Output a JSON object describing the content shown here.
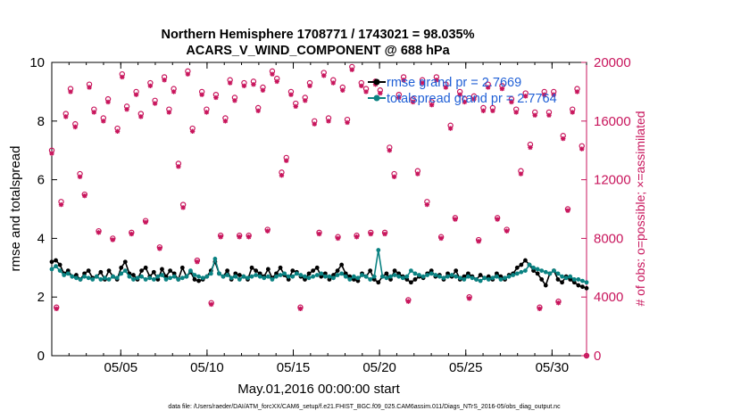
{
  "chart_data": {
    "type": "line",
    "title": "Northern Hemisphere 1708771 / 1743021 = 98.035%",
    "subtitle": "ACARS_V_WIND_COMPONENT @ 688 hPa",
    "xlabel": "May.01,2016 00:00:00 start",
    "ylabel": "rmse and totalspread",
    "ylabel_right": "# of obs: o=possible; ×=assimilated",
    "x_ticks": [
      {
        "label": "05/05",
        "day": 5
      },
      {
        "label": "05/10",
        "day": 10
      },
      {
        "label": "05/15",
        "day": 15
      },
      {
        "label": "05/20",
        "day": 20
      },
      {
        "label": "05/25",
        "day": 25
      },
      {
        "label": "05/30",
        "day": 30
      }
    ],
    "xlim": [
      1,
      32
    ],
    "ylim": [
      0,
      10
    ],
    "ylim_right": [
      0,
      20000
    ],
    "y_ticks": [
      "0",
      "2",
      "4",
      "6",
      "8",
      "10"
    ],
    "y_ticks_right": [
      "0",
      "4000",
      "8000",
      "12000",
      "16000",
      "20000"
    ],
    "legend": [
      {
        "label": "rmse grand pr = 2.7669",
        "color": "#000000"
      },
      {
        "label": "totalspread grand pr = 2.7764",
        "color": "#008080"
      }
    ],
    "colors": {
      "rmse": "#000000",
      "spread": "#0a8282",
      "obs": "#c8155c",
      "legend_text": "#1f5fd6"
    },
    "series": [
      {
        "name": "rmse",
        "values": [
          3.2,
          3.25,
          3.1,
          2.8,
          2.9,
          2.7,
          2.75,
          2.6,
          2.8,
          2.9,
          2.65,
          2.7,
          2.85,
          2.6,
          2.9,
          2.7,
          2.6,
          3.0,
          3.2,
          2.8,
          2.75,
          2.6,
          2.9,
          3.0,
          2.7,
          2.85,
          2.6,
          2.95,
          2.7,
          2.9,
          2.8,
          2.6,
          3.0,
          2.7,
          2.85,
          2.6,
          2.55,
          2.6,
          2.7,
          2.9,
          3.2,
          2.8,
          2.7,
          2.9,
          2.6,
          2.8,
          2.75,
          2.7,
          2.6,
          3.0,
          2.9,
          2.8,
          2.7,
          2.95,
          2.65,
          2.8,
          3.0,
          2.75,
          2.6,
          2.9,
          2.85,
          2.7,
          2.6,
          2.8,
          2.9,
          3.0,
          2.7,
          2.8,
          2.6,
          2.75,
          2.9,
          3.1,
          2.8,
          2.7,
          2.6,
          2.55,
          2.8,
          2.7,
          2.9,
          2.6,
          2.5,
          2.7,
          2.8,
          2.6,
          2.9,
          2.8,
          2.7,
          2.6,
          2.5,
          2.6,
          2.7,
          2.65,
          2.8,
          2.9,
          2.7,
          2.75,
          2.6,
          2.8,
          2.7,
          2.9,
          2.6,
          2.7,
          2.8,
          2.7,
          2.6,
          2.75,
          2.65,
          2.7,
          2.6,
          2.8,
          2.7,
          2.6,
          2.75,
          2.8,
          3.0,
          3.1,
          3.25,
          3.1,
          2.9,
          2.8,
          2.6,
          2.4,
          2.8,
          2.9,
          2.6,
          2.5,
          2.7,
          2.6,
          2.5,
          2.4,
          2.35,
          2.3
        ]
      },
      {
        "name": "totalspread",
        "values": [
          2.95,
          3.05,
          2.9,
          2.75,
          2.8,
          2.7,
          2.65,
          2.6,
          2.7,
          2.65,
          2.6,
          2.7,
          2.6,
          2.65,
          2.6,
          2.7,
          2.65,
          2.8,
          2.9,
          2.7,
          2.6,
          2.65,
          2.7,
          2.6,
          2.65,
          2.6,
          2.7,
          2.75,
          2.6,
          2.65,
          2.7,
          2.6,
          2.65,
          2.7,
          2.9,
          2.75,
          2.7,
          2.65,
          2.7,
          2.8,
          3.3,
          2.8,
          2.7,
          2.75,
          2.65,
          2.7,
          2.6,
          2.7,
          2.65,
          2.7,
          2.75,
          2.7,
          2.65,
          2.7,
          2.6,
          2.7,
          2.75,
          2.8,
          2.7,
          2.7,
          2.8,
          2.75,
          2.7,
          2.65,
          2.7,
          2.75,
          2.8,
          2.7,
          2.7,
          2.65,
          2.75,
          2.8,
          2.7,
          2.6,
          2.7,
          2.65,
          2.75,
          2.7,
          2.6,
          2.7,
          3.6,
          2.7,
          2.65,
          2.7,
          2.75,
          2.7,
          2.65,
          2.7,
          2.9,
          2.8,
          2.75,
          2.7,
          2.75,
          2.8,
          2.75,
          2.7,
          2.65,
          2.7,
          2.75,
          2.7,
          2.65,
          2.6,
          2.7,
          2.65,
          2.6,
          2.55,
          2.65,
          2.6,
          2.65,
          2.7,
          2.6,
          2.65,
          2.7,
          2.75,
          2.8,
          2.85,
          2.9,
          3.1,
          3.0,
          2.95,
          2.9,
          2.85,
          2.8,
          2.9,
          2.8,
          2.7,
          2.65,
          2.7,
          2.6,
          2.6,
          2.55,
          2.5
        ]
      },
      {
        "name": "obs_possible",
        "values": [
          14000,
          3300,
          10500,
          16500,
          18200,
          15800,
          12400,
          11000,
          18500,
          16800,
          8500,
          16200,
          17500,
          8000,
          15500,
          19200,
          17000,
          8400,
          18000,
          16500,
          9200,
          18600,
          17400,
          7400,
          19000,
          16800,
          18200,
          13100,
          10300,
          19400,
          15500,
          6500,
          18000,
          16800,
          3600,
          17800,
          8200,
          16200,
          18800,
          17600,
          8200,
          18600,
          8200,
          18700,
          16900,
          18300,
          8600,
          19400,
          18900,
          12500,
          13500,
          18000,
          17200,
          3300,
          17600,
          18600,
          16000,
          8400,
          19300,
          16200,
          18800,
          8100,
          18300,
          16100,
          19700,
          8200,
          18600,
          18200,
          8400,
          18700,
          18100,
          8400,
          14200,
          12400,
          17800,
          19000,
          3800,
          17500,
          12600,
          18800,
          10500,
          17300,
          19000,
          8100,
          18500,
          15700,
          9400,
          18000,
          17500,
          4000,
          17700,
          7900,
          16900,
          18500,
          16900,
          9400,
          18400,
          8600,
          17500,
          16800,
          12600,
          17900,
          14400,
          16600,
          3300,
          18000,
          16600,
          18000,
          3700,
          15000,
          10000,
          16800,
          18200,
          14300,
          0
        ]
      },
      {
        "name": "obs_assimilated",
        "values": [
          13800,
          3200,
          10300,
          16300,
          18000,
          15600,
          12200,
          10900,
          18300,
          16600,
          8400,
          16000,
          17300,
          7900,
          15300,
          19000,
          16800,
          8300,
          17800,
          16300,
          9100,
          18400,
          17200,
          7300,
          18800,
          16600,
          18000,
          12900,
          10100,
          19200,
          15300,
          6400,
          17800,
          16600,
          3500,
          17600,
          8100,
          16000,
          18600,
          17400,
          8100,
          18400,
          8100,
          18500,
          16700,
          18100,
          8500,
          19200,
          18700,
          12300,
          13300,
          17800,
          17000,
          3200,
          17400,
          18400,
          15800,
          8300,
          19100,
          16000,
          18600,
          8000,
          18100,
          15900,
          19500,
          8100,
          18400,
          18000,
          8300,
          18500,
          17900,
          8300,
          14000,
          12200,
          17600,
          18800,
          3700,
          17300,
          12400,
          18600,
          10300,
          17100,
          18800,
          8000,
          18300,
          15500,
          9300,
          17800,
          17300,
          3900,
          17500,
          7800,
          16700,
          18300,
          16700,
          9300,
          18200,
          8500,
          17300,
          16600,
          12400,
          17700,
          14200,
          16400,
          3200,
          17800,
          16400,
          17800,
          3600,
          14800,
          9900,
          16600,
          18000,
          14100,
          0
        ]
      }
    ]
  },
  "footer": "data file: /Users/raeder/DAI/ATM_forcXX/CAM6_setup/f.e21.FHIST_BGC.f09_025.CAM6assim.011/Diags_NTrS_2016-05/obs_diag_output.nc"
}
